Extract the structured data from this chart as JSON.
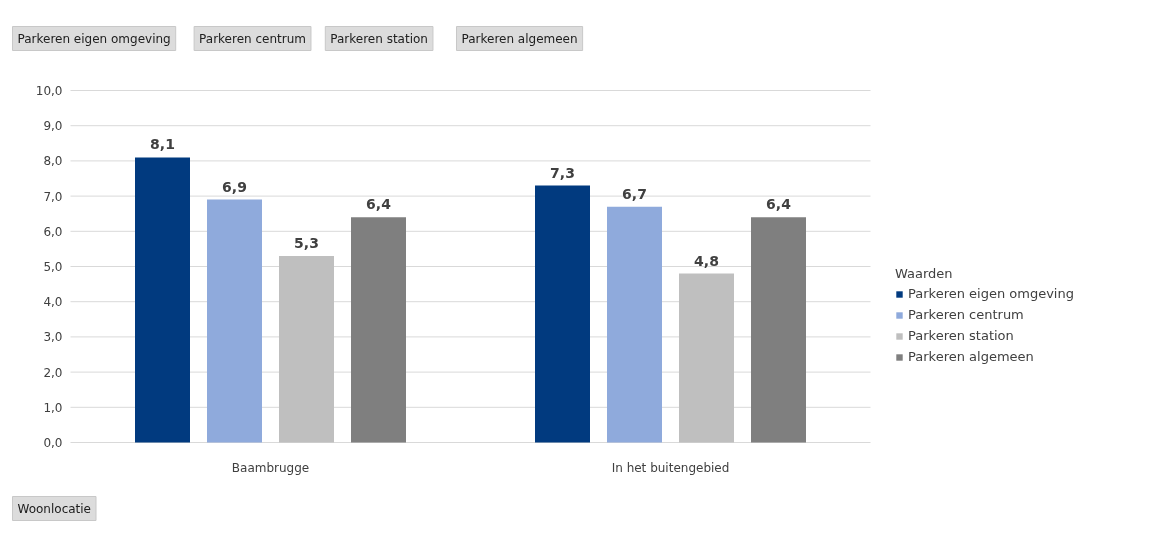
{
  "chart_data": {
    "type": "bar",
    "categories": [
      "Baambrugge",
      "In het buitengebied"
    ],
    "series": [
      {
        "name": "Parkeren eigen omgeving",
        "color": "#013a7f",
        "values": [
          8.1,
          7.3
        ],
        "value_labels": [
          "8,1",
          "7,3"
        ]
      },
      {
        "name": "Parkeren centrum",
        "color": "#8faadc",
        "values": [
          6.9,
          6.7
        ],
        "value_labels": [
          "6,9",
          "6,7"
        ]
      },
      {
        "name": "Parkeren station",
        "color": "#bfbfbf",
        "values": [
          5.3,
          4.8
        ],
        "value_labels": [
          "5,3",
          "4,8"
        ]
      },
      {
        "name": "Parkeren algemeen",
        "color": "#7f7f7f",
        "values": [
          6.4,
          6.4
        ],
        "value_labels": [
          "6,4",
          "6,4"
        ]
      }
    ],
    "ylim": [
      0,
      10
    ],
    "yticks": [
      {
        "value": 0,
        "label": "0,0"
      },
      {
        "value": 1,
        "label": "1,0"
      },
      {
        "value": 2,
        "label": "2,0"
      },
      {
        "value": 3,
        "label": "3,0"
      },
      {
        "value": 4,
        "label": "4,0"
      },
      {
        "value": 5,
        "label": "5,0"
      },
      {
        "value": 6,
        "label": "6,0"
      },
      {
        "value": 7,
        "label": "7,0"
      },
      {
        "value": 8,
        "label": "8,0"
      },
      {
        "value": 9,
        "label": "9,0"
      },
      {
        "value": 10,
        "label": "10,0"
      }
    ],
    "grid": "y",
    "legend": "right",
    "legend_title": "Waarden",
    "annotations": [
      "Parkeren eigen omgeving",
      "Parkeren centrum",
      "Parkeren station",
      "Parkeren algemeen",
      "Woonlocatie"
    ]
  }
}
